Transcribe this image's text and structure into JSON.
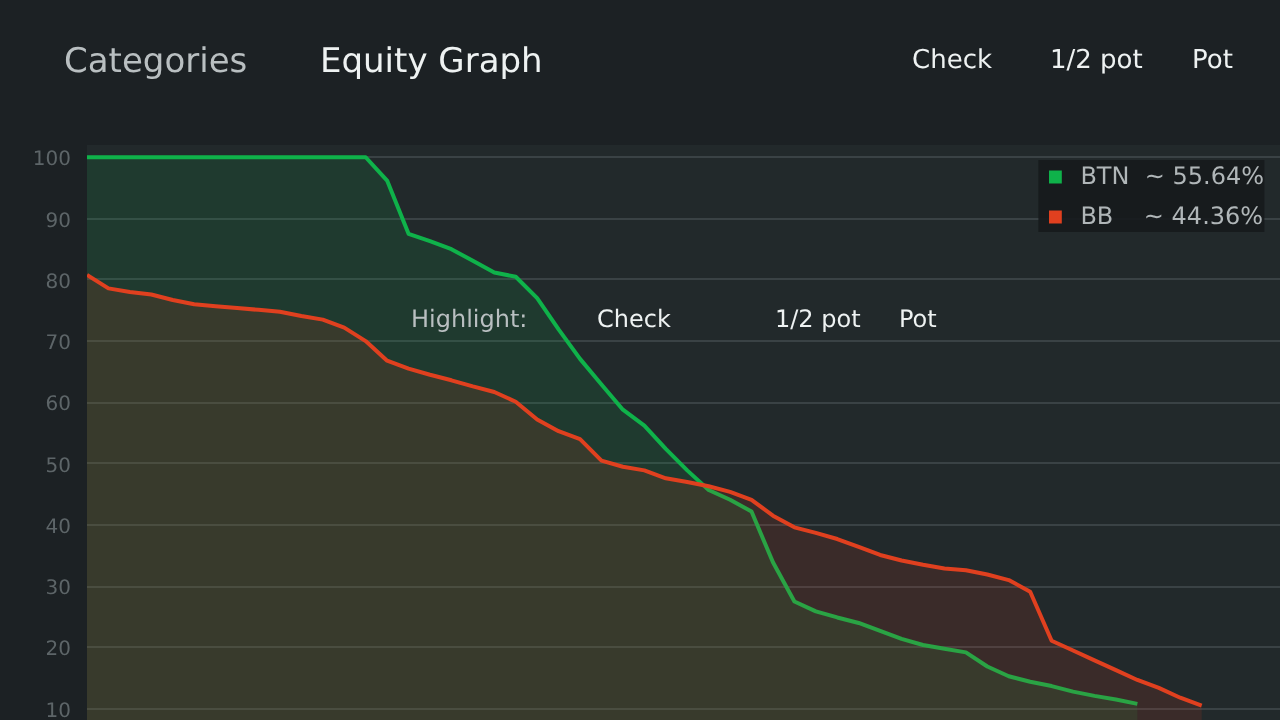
{
  "chart_data": {
    "type": "area",
    "categories": [
      null,
      null,
      null,
      null,
      null,
      null,
      null,
      null,
      null,
      null,
      null,
      null,
      null,
      null,
      null,
      null,
      null,
      null,
      null,
      null,
      null,
      null,
      null,
      null,
      null,
      null,
      null,
      null,
      null,
      null,
      null,
      null,
      null,
      null,
      null,
      null,
      null,
      null,
      null,
      null,
      null,
      null,
      null,
      null,
      null,
      null,
      null,
      null,
      null,
      null,
      null,
      null,
      null
    ],
    "series": [
      {
        "name": "BTN  ~ 55.64%",
        "color": "#0fb24a",
        "values": [
          100,
          100,
          100,
          100,
          100,
          100,
          100,
          100,
          100,
          100,
          100,
          100,
          100,
          100,
          96.2,
          87.5,
          86.3,
          85.0,
          83.1,
          81.2,
          80.5,
          77.0,
          71.9,
          67.1,
          62.9,
          58.8,
          56.2,
          52.4,
          48.9,
          45.7,
          44.1,
          42.2,
          33.9,
          27.5,
          25.9,
          24.9,
          24.0,
          22.7,
          21.4,
          20.4,
          19.8,
          19.2,
          16.9,
          15.3,
          14.4,
          13.7,
          12.8,
          12.1,
          11.5,
          10.8,
          null,
          null,
          null
        ]
      },
      {
        "name": "BB    ~ 44.36%",
        "color": "#e0401f",
        "values": [
          80.8,
          78.6,
          78.0,
          77.6,
          76.7,
          76.0,
          75.7,
          75.4,
          75.1,
          74.8,
          74.1,
          73.5,
          72.2,
          70.0,
          66.8,
          65.5,
          64.5,
          63.6,
          62.6,
          61.7,
          60.1,
          57.2,
          55.3,
          54.0,
          50.5,
          49.5,
          48.9,
          47.6,
          47.0,
          46.3,
          45.4,
          44.1,
          41.5,
          39.6,
          38.7,
          37.7,
          36.4,
          35.1,
          34.2,
          33.5,
          32.9,
          32.6,
          31.9,
          31.0,
          29.1,
          21.1,
          19.5,
          17.9,
          16.3,
          14.7,
          13.4,
          11.8,
          10.5
        ]
      }
    ],
    "ylim": [
      8,
      102
    ],
    "yticks": [
      10,
      20,
      30,
      40,
      50,
      60,
      70,
      80,
      90,
      100
    ],
    "grid": "y",
    "legend": "top right",
    "annotations": [
      "Categories",
      "Equity Graph",
      "Check",
      "1/2 pot",
      "Pot",
      "Highlight:",
      "Check",
      "1/2 pot",
      "Pot"
    ]
  }
}
